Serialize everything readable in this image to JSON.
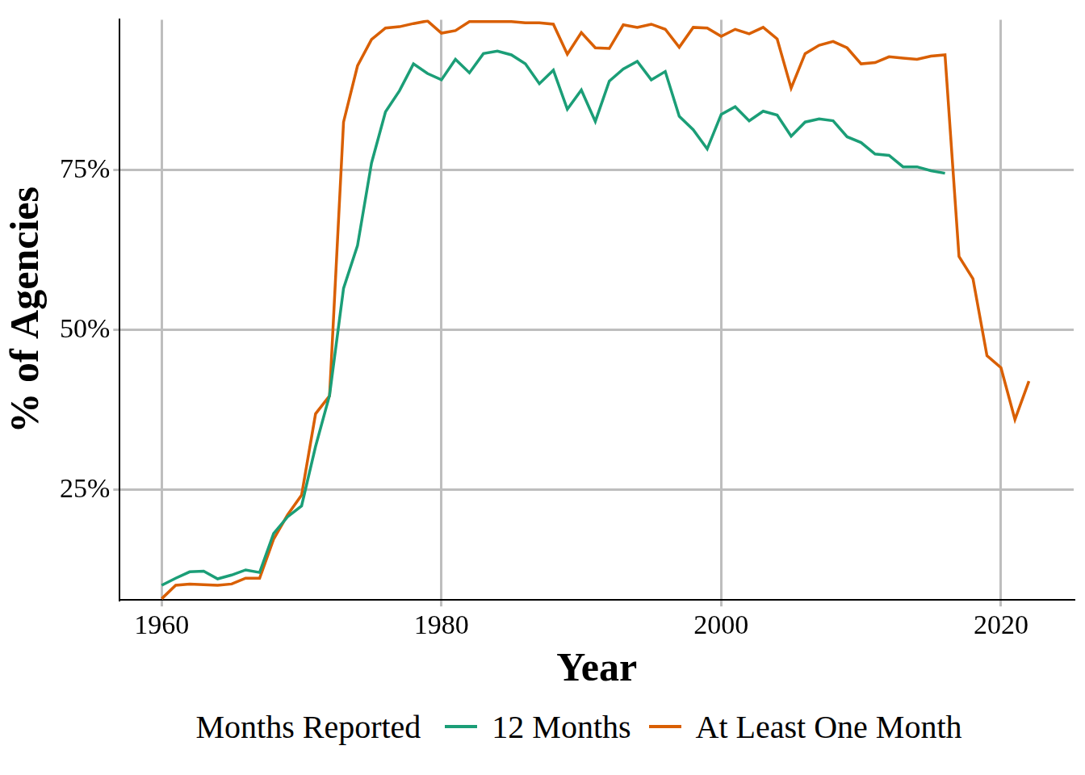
{
  "chart_data": {
    "type": "line",
    "x_label": "Year",
    "y_label": "% of Agencies",
    "legend_title": "Months Reported",
    "legend": "bottom",
    "grid": true,
    "x": [
      1960,
      1961,
      1962,
      1963,
      1964,
      1965,
      1966,
      1967,
      1968,
      1969,
      1970,
      1971,
      1972,
      1973,
      1974,
      1975,
      1976,
      1977,
      1978,
      1979,
      1980,
      1981,
      1982,
      1983,
      1984,
      1985,
      1986,
      1987,
      1988,
      1989,
      1990,
      1991,
      1992,
      1993,
      1994,
      1995,
      1996,
      1997,
      1998,
      1999,
      2000,
      2001,
      2002,
      2003,
      2004,
      2005,
      2006,
      2007,
      2008,
      2009,
      2010,
      2011,
      2012,
      2013,
      2014,
      2015,
      2016,
      2017,
      2018,
      2019,
      2020,
      2021,
      2022
    ],
    "series": [
      {
        "name": "12 Months",
        "color": "#1b9e77",
        "values": [
          10.1,
          11.2,
          12.2,
          12.3,
          11.1,
          11.7,
          12.5,
          12.1,
          18.2,
          20.8,
          22.5,
          31.8,
          39.8,
          56.5,
          63.2,
          76.1,
          84.1,
          87.4,
          91.6,
          90.1,
          89.1,
          92.3,
          90.2,
          93.2,
          93.6,
          93.0,
          91.6,
          88.5,
          90.6,
          84.5,
          87.5,
          82.6,
          88.9,
          90.8,
          92.0,
          89.1,
          90.4,
          83.4,
          81.3,
          78.3,
          83.7,
          84.9,
          82.7,
          84.2,
          83.6,
          80.3,
          82.5,
          83.0,
          82.7,
          80.2,
          79.3,
          77.5,
          77.3,
          75.5,
          75.5,
          74.9,
          74.5,
          null,
          null,
          null,
          null,
          null,
          null
        ]
      },
      {
        "name": "At Least One Month",
        "color": "#d95f02",
        "values": [
          8.0,
          10.1,
          10.3,
          10.2,
          10.1,
          10.3,
          11.2,
          11.2,
          17.3,
          21.1,
          24.2,
          36.9,
          39.7,
          82.5,
          91.3,
          95.4,
          97.2,
          97.4,
          97.9,
          98.3,
          96.4,
          96.8,
          98.2,
          98.2,
          98.2,
          98.2,
          98.0,
          98.0,
          97.8,
          93.1,
          96.5,
          94.1,
          94.0,
          97.7,
          97.3,
          97.8,
          97.0,
          94.2,
          97.3,
          97.2,
          95.9,
          97.0,
          96.3,
          97.3,
          95.5,
          87.8,
          93.2,
          94.5,
          95.1,
          94.1,
          91.6,
          91.8,
          92.7,
          92.5,
          92.3,
          92.8,
          93.0,
          61.5,
          58.0,
          46.0,
          44.1,
          36.0,
          42.0
        ]
      }
    ],
    "xlim": [
      1957,
      2025.2
    ],
    "xticks": [
      1960,
      1980,
      2000,
      2020
    ],
    "ylim": [
      7.8,
      98.5
    ],
    "yticks": [
      {
        "value": 25,
        "label": "25%"
      },
      {
        "value": 50,
        "label": "50%"
      },
      {
        "value": 75,
        "label": "75%"
      }
    ]
  }
}
